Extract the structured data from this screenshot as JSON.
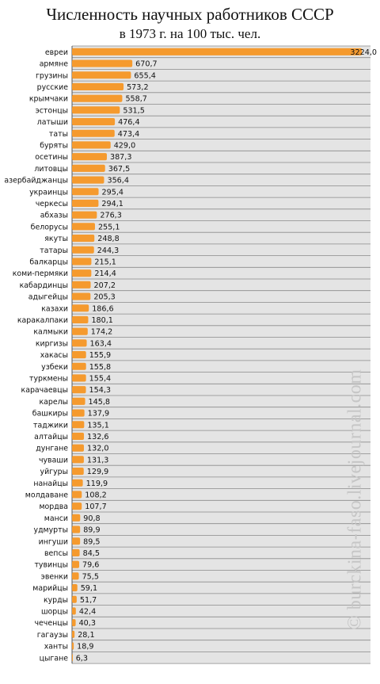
{
  "chart_data": {
    "type": "bar",
    "orientation": "horizontal",
    "title": "Численность научных работников СССР",
    "subtitle": "в 1973 г. на 100 тыс. чел.",
    "xlim": [
      0,
      3320
    ],
    "grid": true,
    "bar_color": "#f59a2e",
    "categories": [
      "евреи",
      "армяне",
      "грузины",
      "русские",
      "крымчаки",
      "эстонцы",
      "латыши",
      "таты",
      "буряты",
      "осетины",
      "литовцы",
      "азербайджанцы",
      "украинцы",
      "черкесы",
      "абхазы",
      "белорусы",
      "якуты",
      "татары",
      "балкарцы",
      "коми-пермяки",
      "кабардинцы",
      "адыгейцы",
      "казахи",
      "каракалпаки",
      "калмыки",
      "киргизы",
      "хакасы",
      "узбеки",
      "туркмены",
      "карачаевцы",
      "карелы",
      "башкиры",
      "таджики",
      "алтайцы",
      "дунгане",
      "чуваши",
      "уйгуры",
      "нанайцы",
      "молдаване",
      "мордва",
      "манси",
      "удмурты",
      "ингуши",
      "вепсы",
      "тувинцы",
      "эвенки",
      "марийцы",
      "курды",
      "шорцы",
      "чеченцы",
      "гагаузы",
      "ханты",
      "цыгане"
    ],
    "values": [
      3224.0,
      670.7,
      655.4,
      573.2,
      558.7,
      531.5,
      476.4,
      473.4,
      429.0,
      387.3,
      367.5,
      356.4,
      295.4,
      294.1,
      276.3,
      255.1,
      248.8,
      244.3,
      215.1,
      214.4,
      207.2,
      205.3,
      186.6,
      180.1,
      174.2,
      163.4,
      155.9,
      155.8,
      155.4,
      154.3,
      145.8,
      137.9,
      135.1,
      132.6,
      132.0,
      131.3,
      129.9,
      119.9,
      108.2,
      107.7,
      90.8,
      89.9,
      89.5,
      84.5,
      79.6,
      75.5,
      59.1,
      51.7,
      42.4,
      40.3,
      28.1,
      18.9,
      6.3
    ],
    "value_labels": [
      "3224,0",
      "670,7",
      "655,4",
      "573,2",
      "558,7",
      "531,5",
      "476,4",
      "473,4",
      "429,0",
      "387,3",
      "367,5",
      "356,4",
      "295,4",
      "294,1",
      "276,3",
      "255,1",
      "248,8",
      "244,3",
      "215,1",
      "214,4",
      "207,2",
      "205,3",
      "186,6",
      "180,1",
      "174,2",
      "163,4",
      "155,9",
      "155,8",
      "155,4",
      "154,3",
      "145,8",
      "137,9",
      "135,1",
      "132,6",
      "132,0",
      "131,3",
      "129,9",
      "119,9",
      "108,2",
      "107,7",
      "90,8",
      "89,9",
      "89,5",
      "84,5",
      "79,6",
      "75,5",
      "59,1",
      "51,7",
      "42,4",
      "40,3",
      "28,1",
      "18,9",
      "6,3"
    ]
  },
  "watermark": "© burckina-faso.livejournal.com"
}
